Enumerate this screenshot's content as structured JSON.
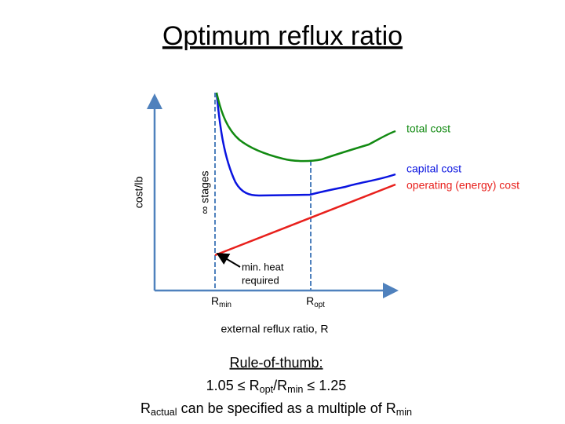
{
  "title": "Optimum reflux ratio",
  "diagram": {
    "y_axis_label": "cost/lb",
    "x_axis_label": "external reflux ratio, R",
    "curves": {
      "total": "total cost",
      "capital": "capital cost",
      "operating": "operating (energy) cost"
    },
    "min_stage_label": "∞ stages",
    "annotation": [
      "min. heat",
      "required"
    ],
    "r_min": {
      "base": "R",
      "sub": "min"
    },
    "r_opt": {
      "base": "R",
      "sub": "opt"
    }
  },
  "rule": {
    "heading": "Rule-of-thumb:",
    "line1": [
      "1.05 ≤ R",
      "opt",
      "/R",
      "min",
      " ≤ 1.25"
    ],
    "line2": [
      "R",
      "actual",
      " can be specified as a multiple of R",
      "min"
    ]
  }
}
